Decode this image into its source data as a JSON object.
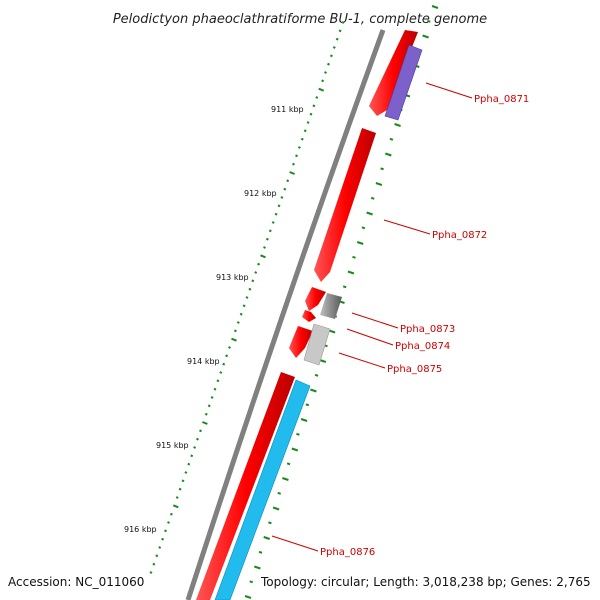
{
  "title": "Pelodictyon phaeoclathratiforme BU-1, complete genome",
  "footer": {
    "accession": "Accession: NC_011060",
    "topology": "Topology: circular; Length: 3,018,238 bp; Genes: 2,765"
  },
  "position_labels": [
    "911 kbp",
    "912 kbp",
    "913 kbp",
    "914 kbp",
    "915 kbp",
    "916 kbp"
  ],
  "genes": [
    {
      "id": "Ppha_0871",
      "color": "#7b61c9"
    },
    {
      "id": "Ppha_0872",
      "color": "#ee0000"
    },
    {
      "id": "Ppha_0873",
      "color": "#6e6e6e"
    },
    {
      "id": "Ppha_0874",
      "color": "#ee0000"
    },
    {
      "id": "Ppha_0875",
      "color": "#c8c8c8"
    },
    {
      "id": "Ppha_0876",
      "color": "#22bbee"
    }
  ],
  "colors": {
    "backbone": "#808080",
    "cds": "#ee0000",
    "ticks": "#1a8a1a",
    "label_line": "#cc0000"
  }
}
